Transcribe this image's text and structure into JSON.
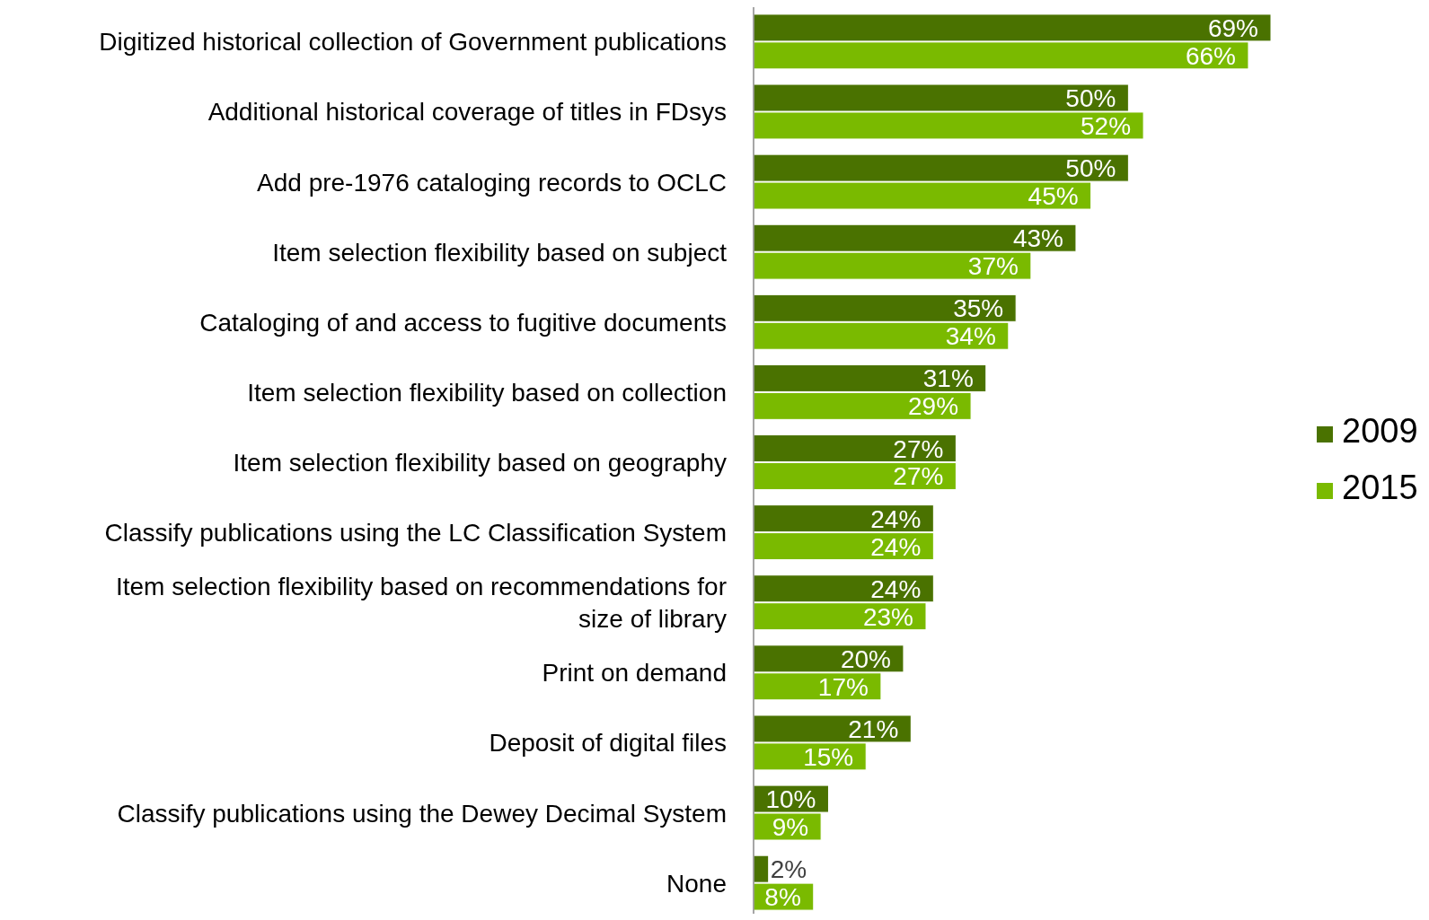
{
  "chart_data": {
    "type": "bar",
    "orientation": "horizontal",
    "categories": [
      "Digitized historical collection of Government publications",
      "Additional historical coverage of titles in FDsys",
      "Add pre-1976 cataloging records to OCLC",
      "Item selection flexibility based on subject",
      "Cataloging of and access to fugitive documents",
      "Item selection flexibility based on collection",
      "Item selection flexibility based on geography",
      "Classify publications using the LC Classification System",
      "Item selection flexibility based on recommendations for size of library",
      "Print on demand",
      "Deposit of digital files",
      "Classify publications using the Dewey Decimal System",
      "None"
    ],
    "series": [
      {
        "name": "2009",
        "color": "#4a7200",
        "values": [
          69,
          50,
          50,
          43,
          35,
          31,
          27,
          24,
          24,
          20,
          21,
          10,
          2
        ],
        "value_labels": [
          "69%",
          "50%",
          "50%",
          "43%",
          "35%",
          "31%",
          "27%",
          "24%",
          "24%",
          "20%",
          "21%",
          "10%",
          "2%"
        ]
      },
      {
        "name": "2015",
        "color": "#7aba00",
        "values": [
          66,
          52,
          45,
          37,
          34,
          29,
          27,
          24,
          23,
          17,
          15,
          9,
          8
        ],
        "value_labels": [
          "66%",
          "52%",
          "45%",
          "37%",
          "34%",
          "29%",
          "27%",
          "24%",
          "23%",
          "17%",
          "15%",
          "9%",
          "8%"
        ]
      }
    ],
    "legend": "right"
  }
}
